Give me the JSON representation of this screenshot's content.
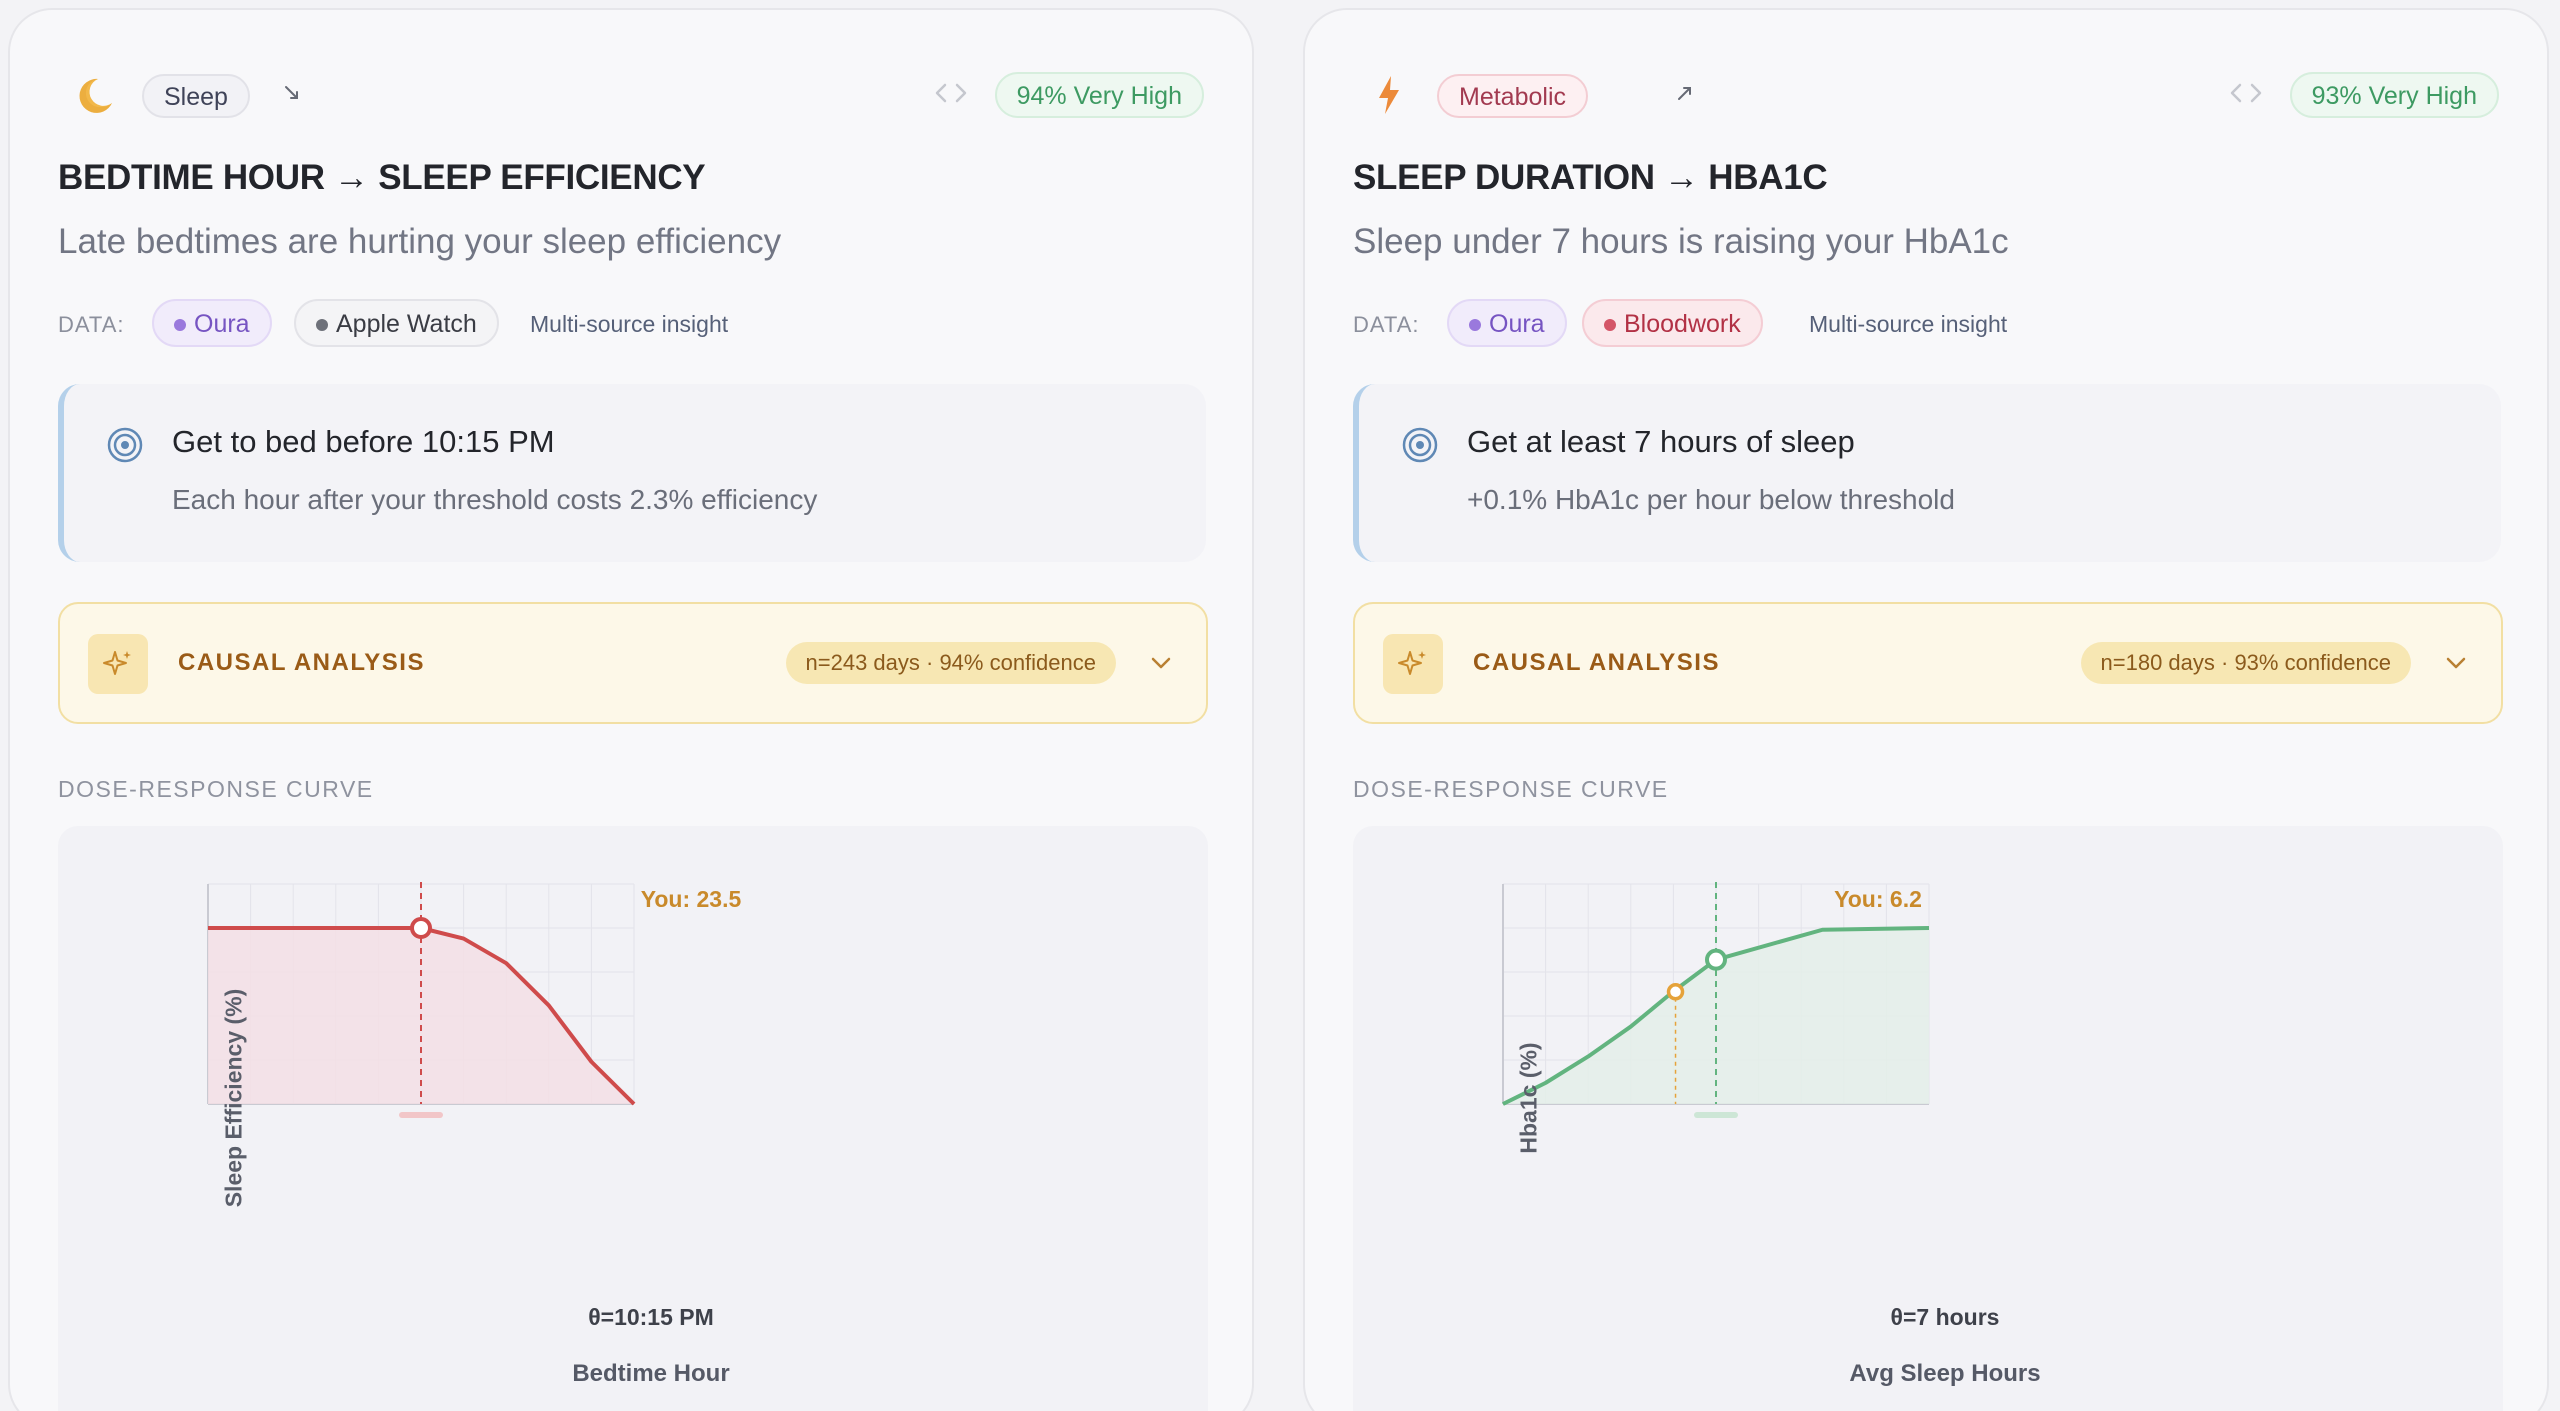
{
  "cards": [
    {
      "category": "Sleep",
      "category_icon": "moon-icon",
      "trend": "down",
      "confidence": "94% Very High",
      "title": "BEDTIME HOUR → SLEEP EFFICIENCY",
      "subtitle": "Late bedtimes are hurting your sleep efficiency",
      "data_label": "DATA:",
      "sources": [
        "Oura",
        "Apple Watch"
      ],
      "multi_source": "Multi-source insight",
      "goal": {
        "title": "Get to bed before 10:15 PM",
        "text": "Each hour after your threshold costs 2.3% efficiency"
      },
      "causal": {
        "title": "CAUSAL ANALYSIS",
        "stats": "n=243 days · 94% confidence"
      },
      "section_label": "DOSE-RESPONSE CURVE",
      "colors": {
        "curve": "#cf4b4b",
        "fill": "#f3dfe5",
        "you": "#cf4b4b",
        "theta_bar": "#f2c6c8"
      },
      "chart_data": {
        "type": "line",
        "shape": "flat-then-decline",
        "xlabel": "Bedtime Hour",
        "ylabel": "Sleep Efficiency (%)",
        "you_label": "You: 23.5",
        "you_value": 23.5,
        "threshold_label": "θ=10:15 PM",
        "x": [
          0,
          0.5,
          1,
          1.2,
          1.4,
          1.6,
          1.8,
          2
        ],
        "y": [
          1,
          1,
          1,
          0.94,
          0.8,
          0.56,
          0.24,
          0
        ],
        "threshold_x": 1,
        "you_x": 1
      }
    },
    {
      "category": "Metabolic",
      "category_icon": "lightning-icon",
      "trend": "up",
      "confidence": "93% Very High",
      "title": "SLEEP DURATION → HBA1C",
      "subtitle": "Sleep under 7 hours is raising your HbA1c",
      "data_label": "DATA:",
      "sources": [
        "Oura",
        "Bloodwork"
      ],
      "multi_source": "Multi-source insight",
      "goal": {
        "title": "Get at least 7 hours of sleep",
        "text": "+0.1% HbA1c per hour below threshold"
      },
      "causal": {
        "title": "CAUSAL ANALYSIS",
        "stats": "n=180 days · 93% confidence"
      },
      "section_label": "DOSE-RESPONSE CURVE",
      "colors": {
        "curve": "#62b47f",
        "fill": "#e4efe9",
        "you": "#e5a23a",
        "theta_bar": "#cde6d6"
      },
      "chart_data": {
        "type": "line",
        "shape": "rise-then-flat",
        "xlabel": "Avg Sleep Hours",
        "ylabel": "Hba1c (%)",
        "you_label": "You: 6.2",
        "you_value": 6.2,
        "threshold_label": "θ=7 hours",
        "x": [
          0,
          0.2,
          0.4,
          0.6,
          0.8,
          1,
          1.5,
          2
        ],
        "y": [
          0,
          0.12,
          0.27,
          0.44,
          0.64,
          0.82,
          0.99,
          1
        ],
        "threshold_x": 1,
        "you_x": 0.81
      }
    }
  ]
}
